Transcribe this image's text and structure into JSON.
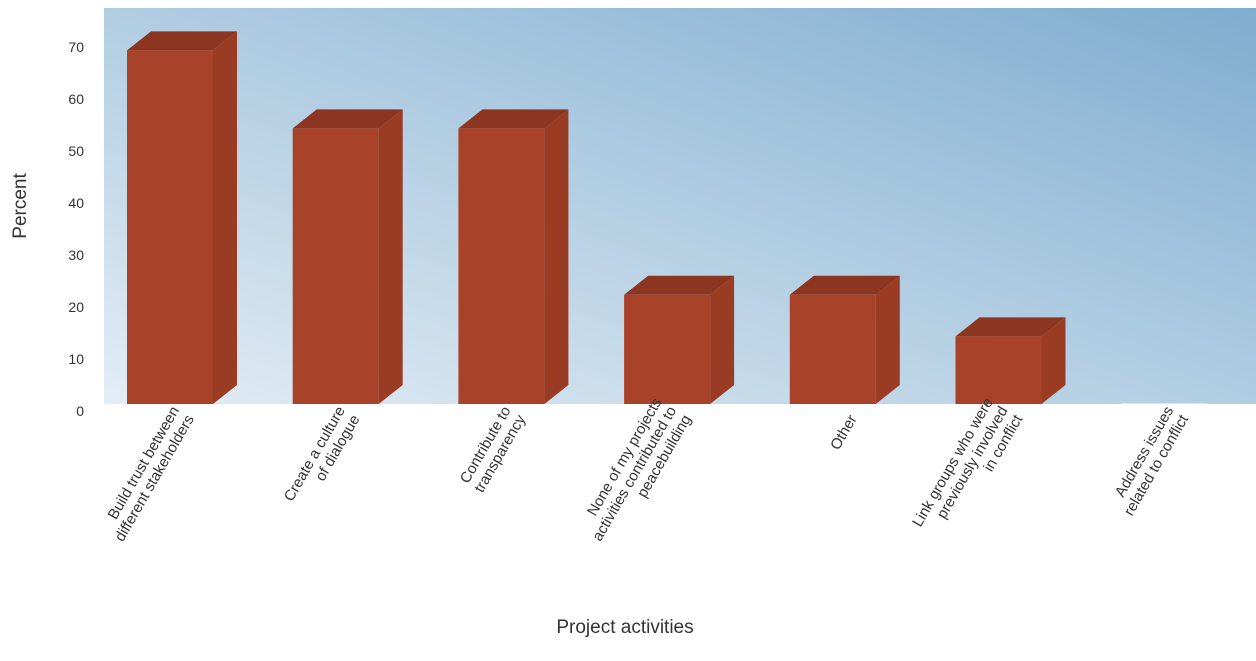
{
  "chart_data": {
    "type": "bar",
    "title": "",
    "xlabel": "Project activities",
    "ylabel": "Percent",
    "categories": [
      [
        "Build trust between",
        "different stakeholders"
      ],
      [
        "Create a culture",
        "of dialogue"
      ],
      [
        "Contribute to",
        "transparency"
      ],
      [
        "None of my projects",
        "activities contributed to",
        "peacebuilding"
      ],
      [
        "Other"
      ],
      [
        "Link groups who were",
        "previously involved",
        "in conflict"
      ],
      [
        "Address issues",
        "related to conflict"
      ]
    ],
    "values": [
      68,
      53,
      53,
      21,
      21,
      13,
      0
    ],
    "ylim": [
      0,
      76
    ],
    "yticks": [
      0,
      10,
      20,
      30,
      40,
      50,
      60,
      70
    ],
    "grid": false,
    "legend": "none",
    "colors": {
      "bar_front": "#a8432a",
      "bar_top": "#8c3520",
      "bar_side": "#9a3b24",
      "background_start": "#e3edf5",
      "background_end": "#7fadcf"
    }
  }
}
